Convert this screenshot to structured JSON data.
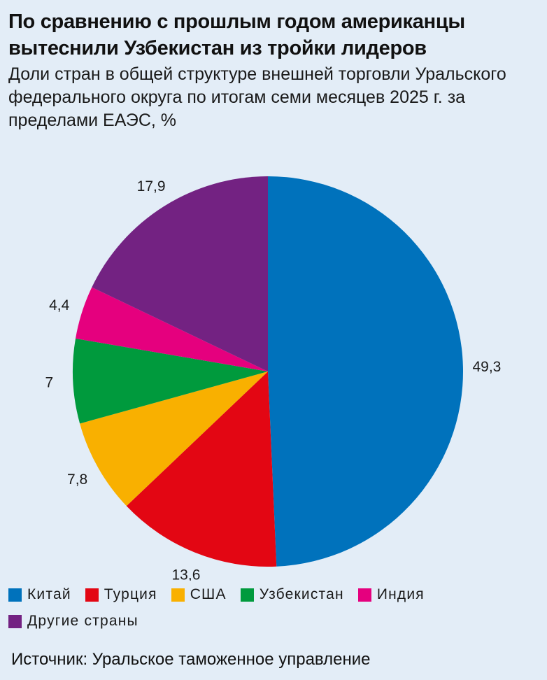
{
  "title": "По сравнению с прошлым годом американцы вытеснили Узбекистан из тройки лидеров",
  "subtitle": "Доли стран в общей структуре внешней торговли Уральского федерального округа по итогам семи месяцев 2025 г. за пределами ЕАЭС, %",
  "source": "Источник: Уральское таможенное управление",
  "chart_data": {
    "type": "pie",
    "unit": "%",
    "categories": [
      "Китай",
      "Турция",
      "США",
      "Узбекистан",
      "Индия",
      "Другие страны"
    ],
    "values": [
      49.3,
      13.6,
      7.8,
      7,
      4.4,
      17.9
    ],
    "value_labels": [
      "49,3",
      "13,6",
      "7,8",
      "7",
      "4,4",
      "17,9"
    ],
    "colors": [
      "#0072bc",
      "#e30613",
      "#f9b000",
      "#009a3d",
      "#e5007e",
      "#732282"
    ],
    "start": "12 o'clock",
    "direction": "clockwise",
    "legend_position": "bottom"
  }
}
